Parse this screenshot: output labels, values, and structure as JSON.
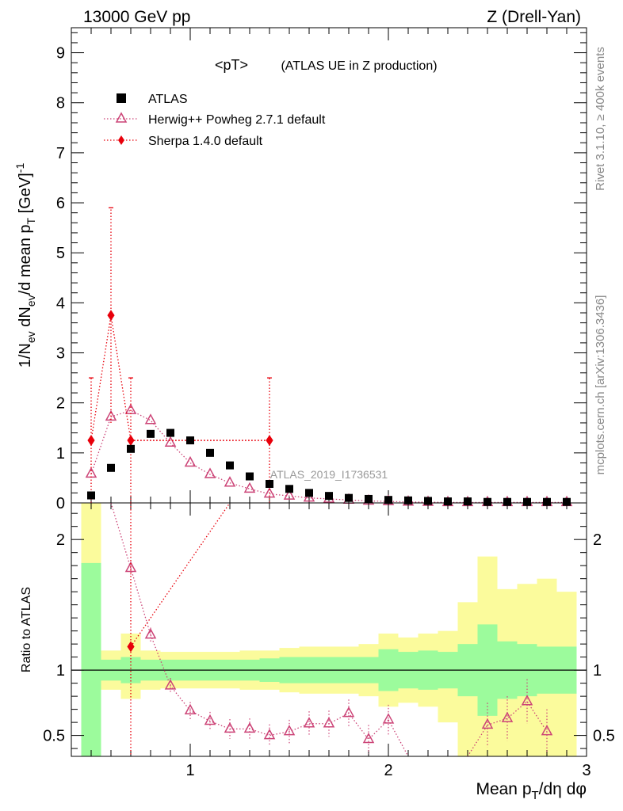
{
  "header": {
    "left": "13000 GeV pp",
    "right": "Z (Drell-Yan)"
  },
  "side": {
    "rivet": "Rivet 3.1.10, ≥ 400k events",
    "mcplots": "mcplots.cern.ch [arXiv:1306.3436]"
  },
  "colors": {
    "atlas": "#000000",
    "herwig": "#cc4477",
    "sherpa": "#e8000b",
    "band_green": "#9cfb9c",
    "band_yellow": "#fbfb9c"
  },
  "chart_data": [
    {
      "type": "scatter",
      "title": "<pT>",
      "subtitle": "(ATLAS UE in Z production)",
      "watermark": "ATLAS_2019_I1736531",
      "ylabel": "1/N_ev dN_ev/d mean p_T [GeV]^-1",
      "ylim": [
        0,
        9.5
      ],
      "yticks": [
        "0",
        "1",
        "2",
        "3",
        "4",
        "5",
        "6",
        "7",
        "8",
        "9"
      ],
      "xlim": [
        0.4,
        3.0
      ],
      "legend_position": "top-left",
      "legend": [
        "ATLAS",
        "Herwig++ Powheg 2.7.1 default",
        "Sherpa 1.4.0 default"
      ],
      "series": [
        {
          "name": "ATLAS",
          "marker": "square",
          "x": [
            0.5,
            0.6,
            0.7,
            0.8,
            0.9,
            1.0,
            1.1,
            1.2,
            1.3,
            1.4,
            1.5,
            1.6,
            1.7,
            1.8,
            1.9,
            2.0,
            2.1,
            2.2,
            2.3,
            2.4,
            2.5,
            2.6,
            2.7,
            2.8,
            2.9
          ],
          "y": [
            0.15,
            0.7,
            1.08,
            1.38,
            1.4,
            1.25,
            1.0,
            0.75,
            0.53,
            0.38,
            0.28,
            0.2,
            0.14,
            0.1,
            0.08,
            0.06,
            0.05,
            0.04,
            0.03,
            0.03,
            0.02,
            0.02,
            0.02,
            0.02,
            0.02
          ]
        },
        {
          "name": "Herwig++ Powheg 2.7.1 default",
          "marker": "open-triangle",
          "x": [
            0.5,
            0.6,
            0.7,
            0.8,
            0.9,
            1.0,
            1.1,
            1.2,
            1.3,
            1.4,
            1.5,
            1.6,
            1.7,
            1.8,
            1.9,
            2.0,
            2.1,
            2.2,
            2.3,
            2.4,
            2.5,
            2.6,
            2.7,
            2.8,
            2.9
          ],
          "y": [
            0.58,
            1.72,
            1.85,
            1.65,
            1.2,
            0.8,
            0.57,
            0.4,
            0.28,
            0.18,
            0.14,
            0.1,
            0.08,
            0.06,
            0.04,
            0.03,
            0.02,
            0.015,
            0.01,
            0.01,
            0.01,
            0.01,
            0.01,
            0.01,
            0.01
          ]
        },
        {
          "name": "Sherpa 1.4.0 default",
          "marker": "diamond",
          "points": [
            {
              "x": 0.5,
              "y": 1.25,
              "ylo": 0.0,
              "yhi": 2.5
            },
            {
              "x": 0.6,
              "y": 3.75,
              "ylo": 1.6,
              "yhi": 5.9
            },
            {
              "x": 0.7,
              "y": 1.25,
              "ylo": 0.0,
              "yhi": 2.5
            },
            {
              "x": 1.4,
              "y": 1.25,
              "ylo": 0.0,
              "yhi": 2.5
            }
          ],
          "xerr_segment": [
            0.7,
            1.4
          ]
        }
      ]
    },
    {
      "type": "scatter",
      "title": "",
      "ylabel": "Ratio to ATLAS",
      "xlabel": "Mean p_T/dη dφ",
      "ylim": [
        0.34,
        2.28
      ],
      "yticks": [
        "0.5",
        "1",
        "2"
      ],
      "xlim": [
        0.4,
        3.0
      ],
      "xticks": [
        "1",
        "2",
        "3"
      ],
      "band_bins": [
        0.45,
        0.55,
        0.65,
        0.75,
        0.85,
        0.95,
        1.05,
        1.15,
        1.25,
        1.35,
        1.45,
        1.55,
        1.65,
        1.75,
        1.85,
        1.95,
        2.05,
        2.15,
        2.25,
        2.35,
        2.45,
        2.55,
        2.65,
        2.75,
        2.85,
        2.95
      ],
      "band_green": [
        [
          0.34,
          1.82
        ],
        [
          0.92,
          1.08
        ],
        [
          0.9,
          1.1
        ],
        [
          0.92,
          1.08
        ],
        [
          0.92,
          1.08
        ],
        [
          0.92,
          1.08
        ],
        [
          0.92,
          1.08
        ],
        [
          0.92,
          1.08
        ],
        [
          0.92,
          1.08
        ],
        [
          0.91,
          1.09
        ],
        [
          0.9,
          1.1
        ],
        [
          0.9,
          1.1
        ],
        [
          0.9,
          1.1
        ],
        [
          0.9,
          1.1
        ],
        [
          0.9,
          1.1
        ],
        [
          0.84,
          1.16
        ],
        [
          0.86,
          1.14
        ],
        [
          0.85,
          1.15
        ],
        [
          0.86,
          1.14
        ],
        [
          0.8,
          1.2
        ],
        [
          0.65,
          1.35
        ],
        [
          0.78,
          1.22
        ],
        [
          0.8,
          1.2
        ],
        [
          0.82,
          1.18
        ],
        [
          0.82,
          1.18
        ]
      ],
      "band_yellow": [
        [
          0.34,
          2.28
        ],
        [
          0.85,
          1.15
        ],
        [
          0.78,
          1.28
        ],
        [
          0.85,
          1.15
        ],
        [
          0.86,
          1.14
        ],
        [
          0.86,
          1.14
        ],
        [
          0.86,
          1.14
        ],
        [
          0.86,
          1.14
        ],
        [
          0.85,
          1.15
        ],
        [
          0.85,
          1.15
        ],
        [
          0.83,
          1.17
        ],
        [
          0.82,
          1.18
        ],
        [
          0.82,
          1.18
        ],
        [
          0.82,
          1.18
        ],
        [
          0.8,
          1.2
        ],
        [
          0.72,
          1.28
        ],
        [
          0.75,
          1.25
        ],
        [
          0.72,
          1.28
        ],
        [
          0.6,
          1.3
        ],
        [
          0.34,
          1.52
        ],
        [
          0.34,
          1.87
        ],
        [
          0.34,
          1.62
        ],
        [
          0.34,
          1.66
        ],
        [
          0.34,
          1.7
        ],
        [
          0.34,
          1.6
        ]
      ],
      "series": [
        {
          "name": "Herwig++ Powheg 2.7.1 default",
          "marker": "open-triangle",
          "x": [
            0.7,
            0.8,
            0.9,
            1.0,
            1.1,
            1.2,
            1.3,
            1.4,
            1.5,
            1.6,
            1.7,
            1.8,
            1.9,
            2.0,
            2.5,
            2.6,
            2.7,
            2.8
          ],
          "y": [
            1.78,
            1.27,
            0.88,
            0.69,
            0.61,
            0.55,
            0.55,
            0.5,
            0.53,
            0.59,
            0.59,
            0.67,
            0.47,
            0.62,
            0.58,
            0.63,
            0.76,
            0.53
          ],
          "offscale_before": 0.6,
          "offscale_after": [
            2.1,
            2.4
          ]
        },
        {
          "name": "Sherpa 1.4.0 default",
          "marker": "diamond",
          "x": [
            0.7
          ],
          "y": [
            1.18
          ],
          "offscale_line": [
            [
              0.7,
              1.18
            ],
            [
              1.2,
              2.28
            ]
          ]
        }
      ]
    }
  ]
}
